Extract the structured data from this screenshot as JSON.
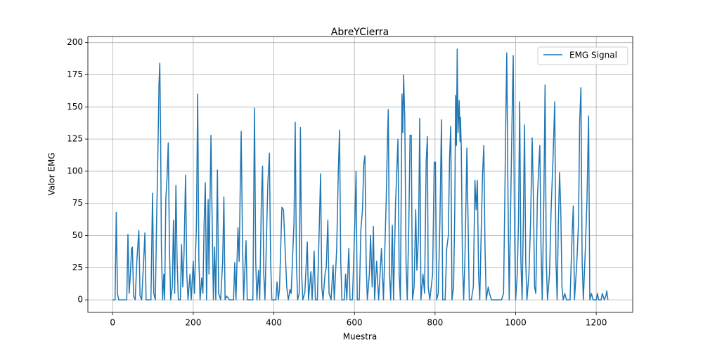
{
  "chart_data": {
    "type": "line",
    "title": "AbreYCierra",
    "x_label": "Muestra",
    "y_label": "Valor EMG",
    "legend": "upper right",
    "grid": true,
    "xlim": [
      -61.45,
      1290.45
    ],
    "ylim": [
      -9.75,
      204.75
    ],
    "xticks": [
      0,
      200,
      400,
      600,
      800,
      1000,
      1200
    ],
    "yticks": [
      0,
      25,
      50,
      75,
      100,
      125,
      150,
      175,
      200
    ],
    "x": [
      0,
      6,
      9,
      12,
      15,
      35,
      38,
      41,
      44,
      47,
      49,
      52,
      56,
      60,
      65,
      68,
      72,
      77,
      80,
      83,
      95,
      99,
      102,
      106,
      109,
      112,
      115,
      117,
      119,
      121,
      124,
      127,
      129,
      132,
      135,
      138,
      141,
      144,
      148,
      151,
      154,
      157,
      160,
      163,
      168,
      171,
      174,
      177,
      181,
      184,
      187,
      192,
      195,
      200,
      203,
      208,
      211,
      214,
      217,
      221,
      224,
      227,
      230,
      233,
      237,
      239,
      244,
      247,
      250,
      253,
      256,
      260,
      263,
      268,
      273,
      276,
      279,
      283,
      290,
      300,
      303,
      306,
      311,
      314,
      317,
      319,
      322,
      325,
      331,
      334,
      348,
      352,
      355,
      358,
      362,
      365,
      369,
      372,
      375,
      378,
      385,
      389,
      392,
      395,
      405,
      408,
      411,
      414,
      417,
      420,
      424,
      428,
      432,
      436,
      440,
      443,
      450,
      453,
      456,
      459,
      463,
      466,
      469,
      472,
      477,
      483,
      486,
      492,
      495,
      500,
      503,
      508,
      513,
      516,
      519,
      522,
      527,
      530,
      534,
      537,
      542,
      547,
      550,
      556,
      560,
      563,
      566,
      569,
      575,
      578,
      581,
      586,
      589,
      595,
      601,
      604,
      607,
      612,
      616,
      620,
      623,
      626,
      629,
      632,
      637,
      640,
      644,
      647,
      650,
      655,
      660,
      667,
      672,
      679,
      682,
      684,
      687,
      690,
      694,
      697,
      702,
      705,
      708,
      711,
      714,
      718,
      720,
      722,
      725,
      728,
      731,
      735,
      738,
      741,
      744,
      748,
      752,
      755,
      759,
      762,
      765,
      770,
      774,
      778,
      781,
      783,
      787,
      794,
      798,
      801,
      804,
      808,
      812,
      816,
      819,
      825,
      829,
      833,
      836,
      839,
      842,
      846,
      849,
      851,
      853,
      855,
      857,
      860,
      862,
      863,
      865,
      868,
      871,
      874,
      877,
      879,
      882,
      885,
      890,
      895,
      899,
      902,
      905,
      908,
      911,
      915,
      918,
      921,
      924,
      927,
      932,
      935,
      940,
      965,
      970,
      974,
      976,
      978,
      981,
      984,
      988,
      991,
      994,
      997,
      1000,
      1004,
      1007,
      1010,
      1013,
      1016,
      1019,
      1022,
      1025,
      1028,
      1033,
      1037,
      1041,
      1044,
      1047,
      1050,
      1054,
      1058,
      1060,
      1063,
      1066,
      1070,
      1073,
      1076,
      1079,
      1084,
      1088,
      1093,
      1097,
      1100,
      1103,
      1106,
      1109,
      1112,
      1115,
      1118,
      1122,
      1126,
      1135,
      1140,
      1143,
      1146,
      1152,
      1156,
      1159,
      1162,
      1165,
      1168,
      1173,
      1177,
      1181,
      1184,
      1188,
      1192,
      1200,
      1203,
      1206,
      1212,
      1215,
      1220,
      1224,
      1226,
      1229
    ],
    "series": [
      {
        "name": "EMG Signal",
        "color": "#1f77b4",
        "values": [
          0,
          0,
          68,
          5,
          0,
          0,
          51,
          5,
          20,
          40,
          41,
          3,
          0,
          30,
          54,
          3,
          0,
          30,
          52,
          0,
          0,
          83,
          5,
          0,
          60,
          108,
          167,
          184,
          130,
          40,
          0,
          20,
          0,
          79,
          95,
          122,
          40,
          0,
          10,
          62,
          5,
          89,
          30,
          0,
          0,
          43,
          10,
          35,
          97,
          20,
          0,
          20,
          0,
          30,
          5,
          60,
          160,
          30,
          0,
          17,
          5,
          60,
          91,
          0,
          78,
          20,
          128,
          60,
          0,
          41,
          0,
          101,
          5,
          0,
          30,
          80,
          0,
          3,
          0,
          0,
          29,
          0,
          56,
          30,
          96,
          131,
          50,
          0,
          46,
          0,
          0,
          149,
          30,
          0,
          23,
          0,
          77,
          104,
          20,
          0,
          90,
          114,
          30,
          0,
          0,
          14,
          0,
          8,
          40,
          72,
          70,
          40,
          10,
          0,
          8,
          5,
          60,
          138,
          30,
          0,
          5,
          134,
          20,
          0,
          6,
          45,
          0,
          22,
          0,
          38,
          0,
          0,
          60,
          98,
          10,
          0,
          20,
          25,
          62,
          5,
          0,
          27,
          0,
          40,
          100,
          132,
          30,
          0,
          0,
          20,
          0,
          40,
          0,
          0,
          60,
          100,
          0,
          0,
          55,
          70,
          105,
          112,
          30,
          0,
          20,
          50,
          10,
          57,
          0,
          30,
          0,
          40,
          0,
          80,
          126,
          148,
          20,
          0,
          58,
          0,
          75,
          100,
          125,
          20,
          0,
          160,
          130,
          175,
          140,
          30,
          0,
          60,
          128,
          128,
          0,
          10,
          70,
          23,
          50,
          141,
          0,
          20,
          5,
          108,
          127,
          10,
          0,
          20,
          107,
          107,
          0,
          5,
          60,
          140,
          0,
          0,
          40,
          50,
          110,
          135,
          0,
          10,
          70,
          159,
          120,
          195,
          130,
          155,
          123,
          142,
          120,
          30,
          0,
          30,
          80,
          118,
          60,
          0,
          0,
          10,
          93,
          70,
          93,
          20,
          0,
          60,
          98,
          120,
          40,
          0,
          10,
          5,
          0,
          0,
          5,
          100,
          150,
          192,
          80,
          0,
          80,
          140,
          190,
          60,
          0,
          20,
          60,
          154,
          30,
          0,
          60,
          136,
          30,
          0,
          20,
          60,
          126,
          80,
          10,
          5,
          80,
          108,
          120,
          40,
          0,
          80,
          167,
          30,
          0,
          20,
          70,
          112,
          154,
          30,
          0,
          60,
          99,
          70,
          10,
          0,
          5,
          0,
          0,
          50,
          73,
          0,
          30,
          60,
          140,
          165,
          30,
          0,
          40,
          78,
          143,
          0,
          5,
          0,
          0,
          5,
          0,
          0,
          5,
          0,
          3,
          7,
          0
        ]
      }
    ]
  }
}
